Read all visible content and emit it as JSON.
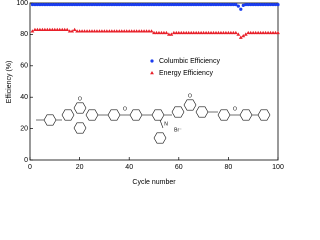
{
  "chart_data": {
    "type": "scatter",
    "x_label": "Cycle number",
    "y_label": "Efficiency (%)",
    "x": [
      1,
      2,
      3,
      4,
      5,
      6,
      7,
      8,
      9,
      10,
      11,
      12,
      13,
      14,
      15,
      16,
      17,
      18,
      19,
      20,
      21,
      22,
      23,
      24,
      25,
      26,
      27,
      28,
      29,
      30,
      31,
      32,
      33,
      34,
      35,
      36,
      37,
      38,
      39,
      40,
      41,
      42,
      43,
      44,
      45,
      46,
      47,
      48,
      49,
      50,
      51,
      52,
      53,
      54,
      55,
      56,
      57,
      58,
      59,
      60,
      61,
      62,
      63,
      64,
      65,
      66,
      67,
      68,
      69,
      70,
      71,
      72,
      73,
      74,
      75,
      76,
      77,
      78,
      79,
      80,
      81,
      82,
      83,
      84,
      85,
      86,
      87,
      88,
      89,
      90,
      91,
      92,
      93,
      94,
      95,
      96,
      97,
      98,
      99,
      100
    ],
    "series": [
      {
        "name": "Columbic Efficiency",
        "color": "#1a3cf0",
        "marker": "circle",
        "values": [
          99,
          99,
          99,
          99,
          99,
          99,
          99,
          99,
          99,
          99,
          99,
          99,
          99,
          99,
          99,
          99,
          99,
          99,
          99,
          99,
          99,
          99,
          99,
          99,
          99,
          99,
          99,
          99,
          99,
          99,
          99,
          99,
          99,
          99,
          99,
          99,
          99,
          99,
          99,
          99,
          99,
          99,
          99,
          99,
          99,
          99,
          99,
          99,
          99,
          99,
          99,
          99,
          99,
          99,
          99,
          99,
          99,
          99,
          99,
          99,
          99,
          99,
          99,
          99,
          99,
          99,
          99,
          99,
          99,
          99,
          99,
          99,
          99,
          99,
          99,
          99,
          99,
          99,
          99,
          99,
          99,
          99,
          99,
          98,
          96,
          98.5,
          99,
          99,
          99,
          99,
          99,
          99,
          99,
          99,
          99,
          99,
          99,
          99,
          99,
          99
        ]
      },
      {
        "name": "Energy Efficiency",
        "color": "#e8202a",
        "marker": "triangle",
        "values": [
          82,
          83,
          83,
          83,
          83,
          83,
          83,
          83,
          83,
          83,
          83,
          83,
          83,
          83,
          83,
          82,
          82,
          83,
          82,
          82,
          82,
          82,
          82,
          82,
          82,
          82,
          82,
          82,
          82,
          82,
          82,
          82,
          82,
          82,
          82,
          82,
          82,
          82,
          82,
          82,
          82,
          82,
          82,
          82,
          82,
          82,
          82,
          82,
          82,
          81,
          81,
          81,
          81,
          81,
          81,
          80,
          80,
          81,
          81,
          81,
          81,
          81,
          81,
          81,
          81,
          81,
          81,
          81,
          81,
          81,
          81,
          81,
          81,
          81,
          81,
          81,
          81,
          81,
          81,
          81,
          81,
          81,
          81,
          80,
          78,
          79,
          80,
          81,
          81,
          81,
          81,
          81,
          81,
          81,
          81,
          81,
          81,
          81,
          81,
          81
        ]
      }
    ],
    "xlim": [
      0,
      100
    ],
    "xticks": [
      0,
      20,
      40,
      60,
      80,
      100
    ],
    "ylim": [
      0,
      100
    ],
    "yticks": [
      0,
      20,
      40,
      60,
      80,
      100
    ],
    "structure_labels": [
      "O",
      "O",
      "O",
      "O",
      "N",
      "Br⁻"
    ]
  }
}
